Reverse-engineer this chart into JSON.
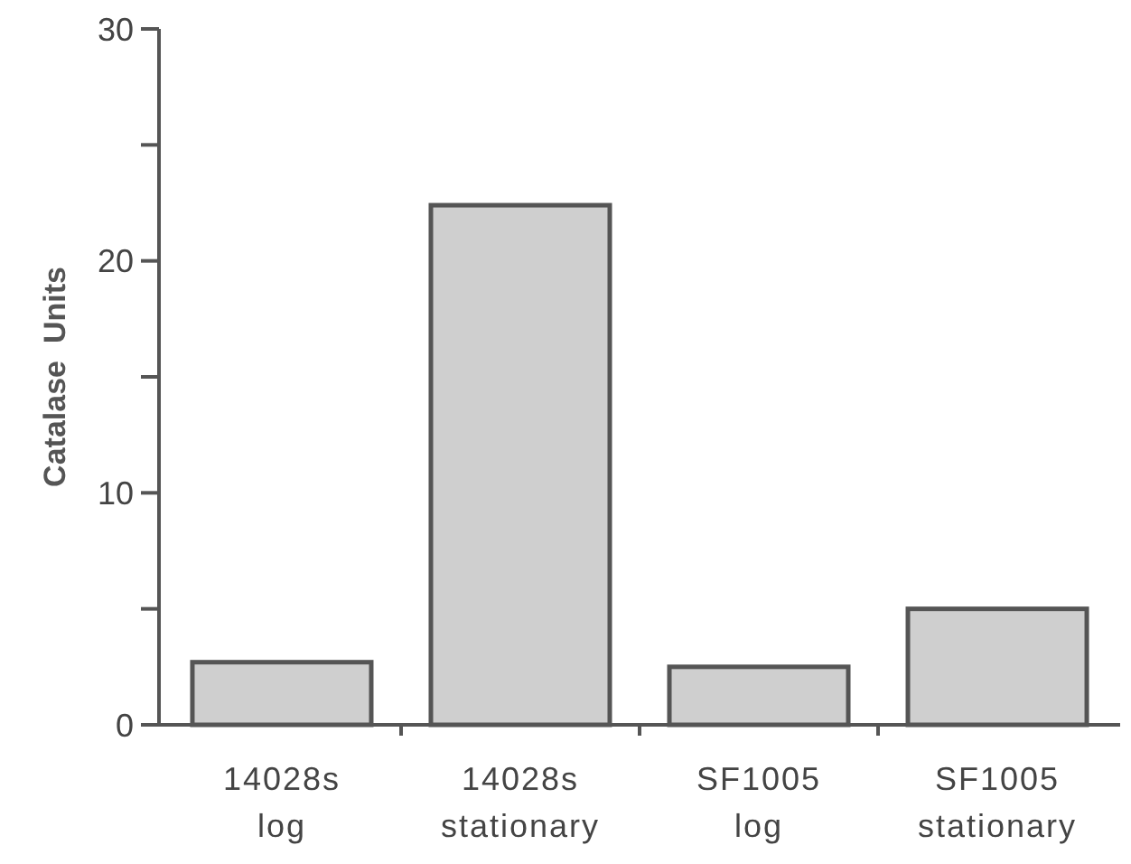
{
  "chart_data": {
    "type": "bar",
    "ylabel": "Catalase  Units",
    "categories": [
      "14028s\nlog",
      "14028s\nstationary",
      "SF1005\nlog",
      "SF1005\nstationary"
    ],
    "values": [
      2.7,
      22.4,
      2.5,
      5.0
    ],
    "color": "#cfcfcf",
    "ylim": [
      0,
      30
    ],
    "yticks": [
      0,
      {
        "value": 5,
        "label": null
      },
      10,
      {
        "value": 15,
        "label": null
      },
      20,
      {
        "value": 25,
        "label": null
      },
      30
    ]
  }
}
